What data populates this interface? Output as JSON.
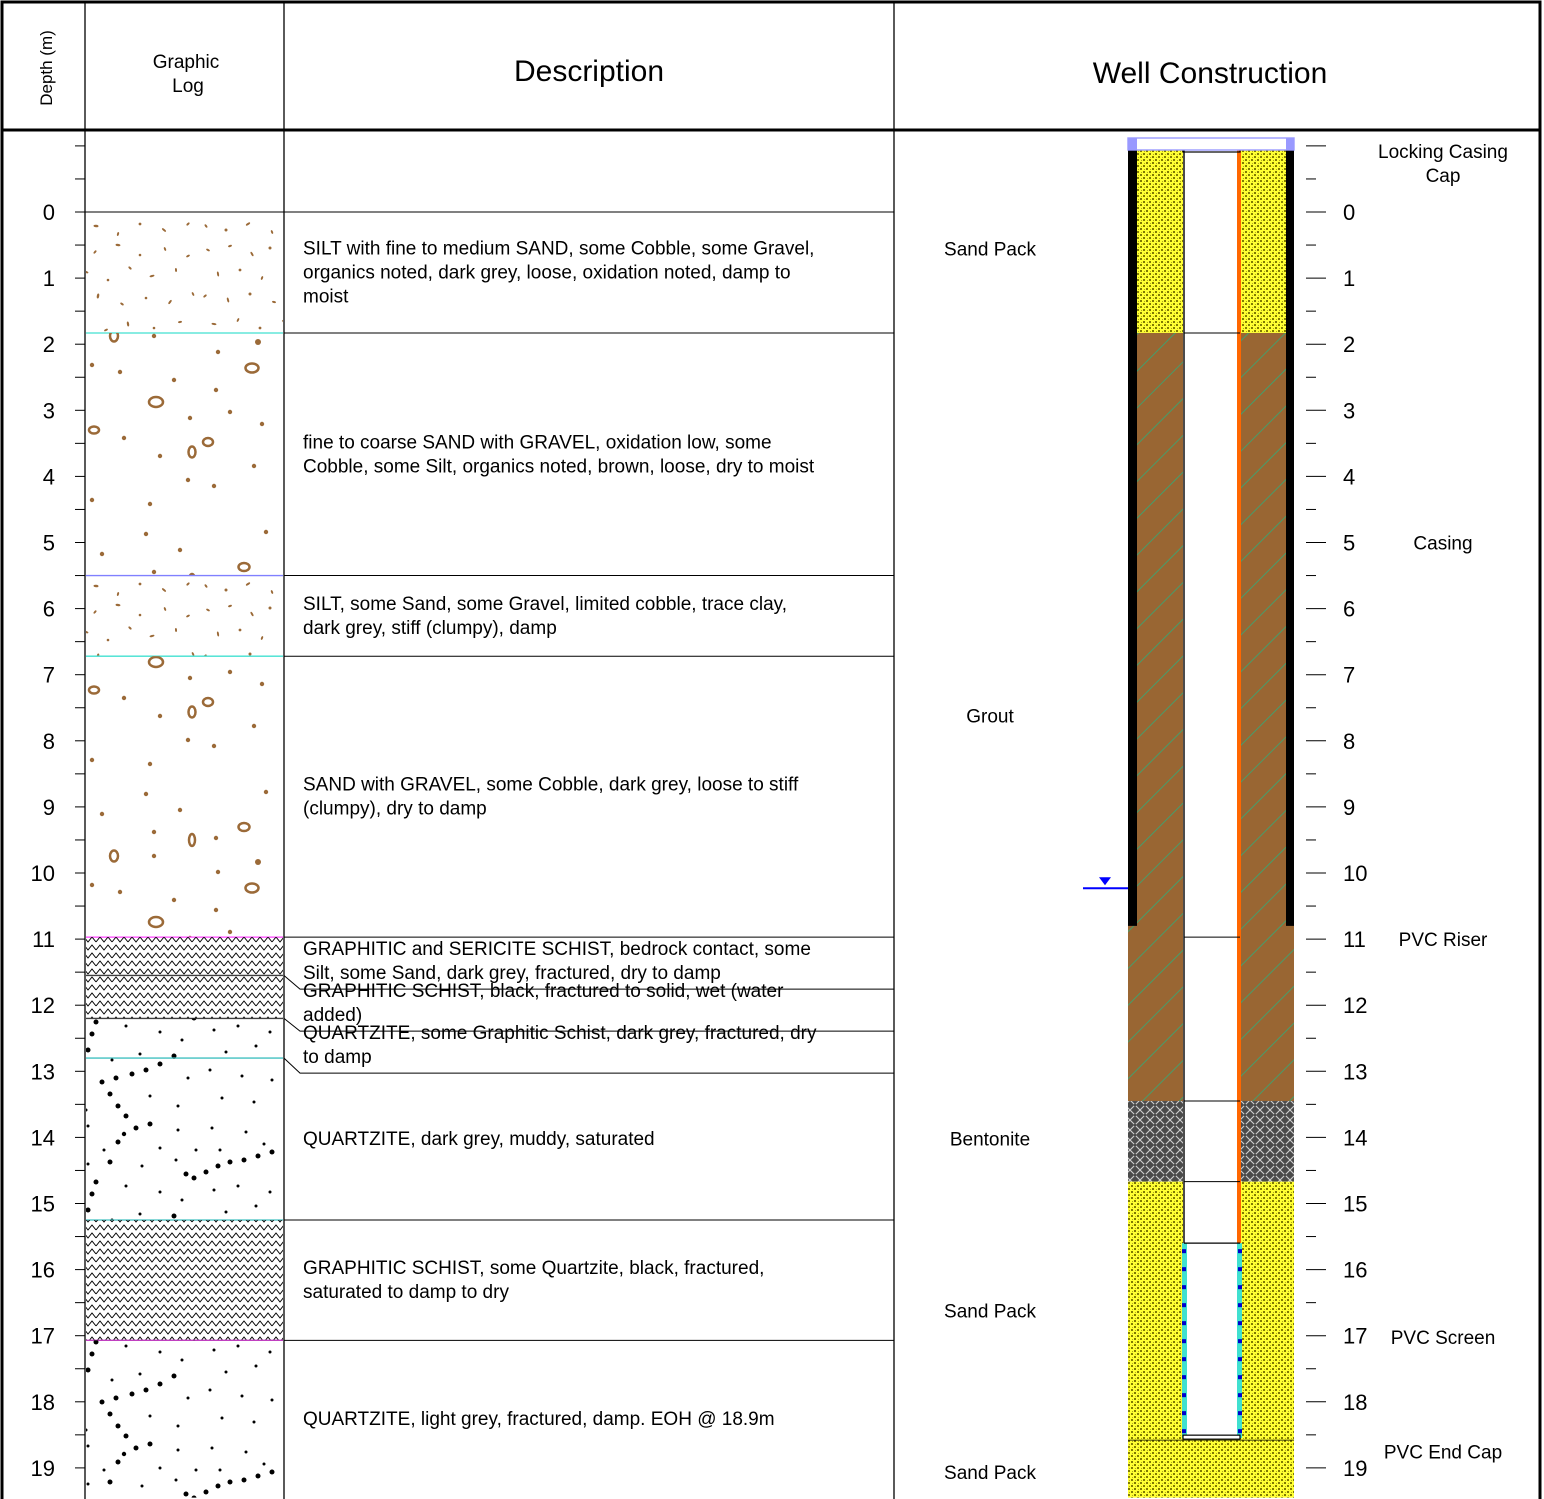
{
  "headers": {
    "depth": "Depth (m)",
    "graphic_log_line1": "Graphic",
    "graphic_log_line2": "Log",
    "description": "Description",
    "well_construction": "Well Construction"
  },
  "depth_ticks": [
    "0",
    "1",
    "2",
    "3",
    "4",
    "5",
    "6",
    "7",
    "8",
    "9",
    "10",
    "11",
    "12",
    "13",
    "14",
    "15",
    "16",
    "17",
    "18",
    "19"
  ],
  "strata": [
    {
      "top": 0.0,
      "bottom": 1.83,
      "pattern": "silt",
      "contact_color": "#40e0d0",
      "description": [
        "SILT with fine to medium SAND, some Cobble, some Gravel,",
        "organics noted, dark grey, loose, oxidation noted, damp to",
        "moist"
      ]
    },
    {
      "top": 1.83,
      "bottom": 5.5,
      "pattern": "sand",
      "contact_color": "#8080ff",
      "description": [
        "fine to coarse SAND with GRAVEL, oxidation low, some",
        "Cobble, some Silt, organics noted, brown, loose, dry to moist"
      ]
    },
    {
      "top": 5.5,
      "bottom": 6.72,
      "pattern": "silt",
      "contact_color": "#40e0d0",
      "description": [
        "SILT, some Sand, some Gravel, limited cobble, trace clay,",
        "dark grey, stiff (clumpy), damp"
      ]
    },
    {
      "top": 6.72,
      "bottom": 10.97,
      "pattern": "sand",
      "contact_color": "#ff40ff",
      "description": [
        "SAND with GRAVEL, some Cobble, dark grey, loose to stiff",
        "(clumpy), dry to damp"
      ]
    },
    {
      "top": 10.97,
      "bottom": 11.55,
      "pattern": "schist",
      "contact_color": "#404040",
      "description": [
        "GRAPHITIC and SERICITE SCHIST, bedrock contact, some",
        "Silt, some Sand, dark grey, fractured, dry to damp"
      ]
    },
    {
      "top": 11.55,
      "bottom": 12.2,
      "pattern": "schist",
      "contact_color": "#404040",
      "description": [
        "GRAPHITIC SCHIST, black, fractured to solid, wet (water",
        "added)"
      ]
    },
    {
      "top": 12.2,
      "bottom": 12.8,
      "pattern": "quartzite",
      "contact_color": "#40c0c0",
      "description": [
        "QUARTZITE, some Graphitic Schist, dark grey, fractured, dry",
        "to damp"
      ]
    },
    {
      "top": 12.8,
      "bottom": 15.25,
      "pattern": "quartzite",
      "contact_color": "#40c0c0",
      "description": [
        "QUARTZITE, dark grey, muddy, saturated"
      ]
    },
    {
      "top": 15.25,
      "bottom": 17.07,
      "pattern": "schist",
      "contact_color": "#c040c0",
      "description": [
        "GRAPHITIC SCHIST, some Quartzite, black, fractured,",
        "saturated to damp to dry"
      ]
    },
    {
      "top": 17.07,
      "bottom": 19.45,
      "pattern": "quartzite",
      "contact_color": "#c040c0",
      "description": [
        "QUARTZITE, light grey, fractured, damp. EOH @ 18.9m"
      ]
    }
  ],
  "annulus_labels": [
    {
      "depth": 0.55,
      "text": "Sand Pack"
    },
    {
      "depth": 7.62,
      "text": "Grout"
    },
    {
      "depth": 14.02,
      "text": "Bentonite"
    },
    {
      "depth": 16.62,
      "text": "Sand Pack"
    },
    {
      "depth": 19.06,
      "text": "Sand Pack"
    }
  ],
  "annulus_fill": [
    {
      "top": -1.1,
      "bottom": 1.83,
      "material": "sand_pack"
    },
    {
      "top": 1.83,
      "bottom": 13.45,
      "material": "grout"
    },
    {
      "top": 13.45,
      "bottom": 14.67,
      "material": "bentonite"
    },
    {
      "top": 14.67,
      "bottom": 19.45,
      "material": "sand_pack"
    }
  ],
  "components": [
    {
      "depth": -0.92,
      "lines": [
        "Locking Casing",
        "Cap"
      ]
    },
    {
      "depth": 5.0,
      "lines": [
        "Casing"
      ]
    },
    {
      "depth": 11.0,
      "lines": [
        "PVC Riser"
      ]
    },
    {
      "depth": 17.02,
      "lines": [
        "PVC Screen"
      ]
    },
    {
      "depth": 18.75,
      "lines": [
        "PVC End Cap"
      ]
    }
  ],
  "well": {
    "casing_bottom": 10.8,
    "riser_bottom": 15.6,
    "screen_top": 15.6,
    "screen_bottom": 18.55,
    "water_level": 10.23
  },
  "colors": {
    "sand_pack": "#ffff33",
    "grout": "#996633",
    "grout_hatch": "#33aa77",
    "bentonite": "#4a4a4a",
    "soil_brown": "#9b6a38",
    "riser": "#ff6600",
    "screen": "#40e0d0",
    "water_level": "#0000ff",
    "cap": "#9999ff"
  }
}
